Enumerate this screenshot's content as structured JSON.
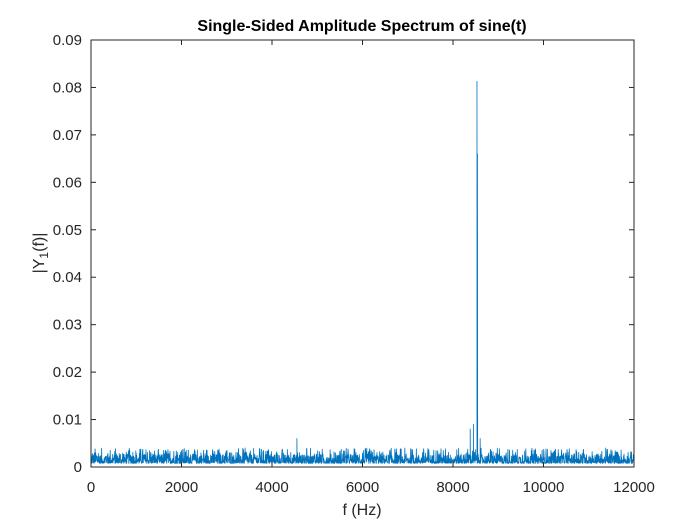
{
  "chart_data": {
    "type": "line",
    "title": "Single-Sided Amplitude Spectrum of sine(t)",
    "xlabel": "f (Hz)",
    "ylabel": {
      "prefix": "|Y",
      "subscript": "1",
      "suffix": "(f)|"
    },
    "xlim": [
      0,
      12000
    ],
    "ylim": [
      0,
      0.09
    ],
    "x_ticks": [
      0,
      2000,
      4000,
      6000,
      8000,
      10000,
      12000
    ],
    "x_tick_labels": [
      "0",
      "2000",
      "4000",
      "6000",
      "8000",
      "10000",
      "12000"
    ],
    "y_ticks": [
      0,
      0.01,
      0.02,
      0.03,
      0.04,
      0.05,
      0.06,
      0.07,
      0.08,
      0.09
    ],
    "y_tick_labels": [
      "0",
      "0.01",
      "0.02",
      "0.03",
      "0.04",
      "0.05",
      "0.06",
      "0.07",
      "0.08",
      "0.09"
    ],
    "grid": false,
    "box": true,
    "series": [
      {
        "color": "#0072BD",
        "noise_floor": {
          "x_range": [
            0,
            12000
          ],
          "y_min": 0.0002,
          "y_max": 0.004
        },
        "notable_points": [
          {
            "x": 4550,
            "y": 0.006
          },
          {
            "x": 8380,
            "y": 0.008
          },
          {
            "x": 8450,
            "y": 0.009
          },
          {
            "x": 8530,
            "y": 0.0813
          },
          {
            "x": 8540,
            "y": 0.066
          },
          {
            "x": 8600,
            "y": 0.006
          }
        ]
      }
    ]
  }
}
